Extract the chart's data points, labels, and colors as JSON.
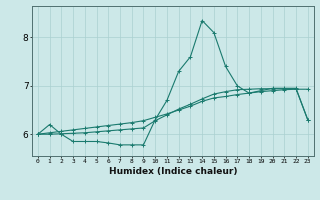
{
  "xlabel": "Humidex (Indice chaleur)",
  "ylabel": "",
  "bg_color": "#cce8e8",
  "line_color": "#1a7a6e",
  "grid_color": "#aad0d0",
  "xlim": [
    -0.5,
    23.5
  ],
  "ylim": [
    5.55,
    8.65
  ],
  "yticks": [
    6,
    7,
    8
  ],
  "xticks": [
    0,
    1,
    2,
    3,
    4,
    5,
    6,
    7,
    8,
    9,
    10,
    11,
    12,
    13,
    14,
    15,
    16,
    17,
    18,
    19,
    20,
    21,
    22,
    23
  ],
  "line1_x": [
    0,
    1,
    2,
    3,
    4,
    5,
    6,
    7,
    8,
    9,
    10,
    11,
    12,
    13,
    14,
    15,
    16,
    17,
    18,
    19,
    20,
    21,
    22,
    23
  ],
  "line1_y": [
    6.0,
    6.2,
    6.0,
    5.85,
    5.85,
    5.85,
    5.82,
    5.78,
    5.78,
    5.78,
    6.3,
    6.7,
    7.3,
    7.6,
    8.35,
    8.1,
    7.4,
    7.0,
    6.85,
    6.9,
    6.95,
    6.95,
    6.95,
    6.3
  ],
  "line2_x": [
    0,
    1,
    2,
    3,
    4,
    5,
    6,
    7,
    8,
    9,
    10,
    11,
    12,
    13,
    14,
    15,
    16,
    17,
    18,
    19,
    20,
    21,
    22,
    23
  ],
  "line2_y": [
    6.0,
    6.03,
    6.06,
    6.09,
    6.12,
    6.15,
    6.18,
    6.21,
    6.24,
    6.28,
    6.35,
    6.42,
    6.5,
    6.58,
    6.68,
    6.75,
    6.78,
    6.82,
    6.85,
    6.88,
    6.9,
    6.92,
    6.93,
    6.93
  ],
  "line3_x": [
    0,
    1,
    2,
    3,
    4,
    5,
    6,
    7,
    8,
    9,
    10,
    11,
    12,
    13,
    14,
    15,
    16,
    17,
    18,
    19,
    20,
    21,
    22,
    23
  ],
  "line3_y": [
    6.0,
    6.0,
    6.01,
    6.02,
    6.03,
    6.05,
    6.07,
    6.09,
    6.11,
    6.13,
    6.28,
    6.4,
    6.52,
    6.62,
    6.73,
    6.83,
    6.88,
    6.92,
    6.93,
    6.94,
    6.94,
    6.94,
    6.94,
    6.3
  ]
}
